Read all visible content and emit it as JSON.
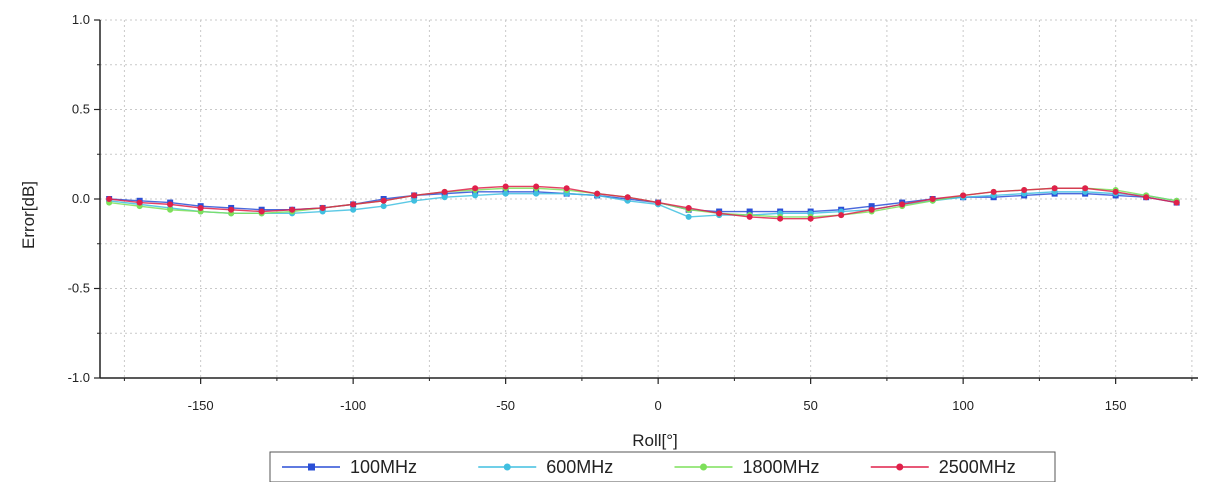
{
  "chart_data": {
    "type": "line",
    "title": "",
    "xlabel": "Roll[°]",
    "ylabel": "Error[dB]",
    "xlim": [
      -183,
      177
    ],
    "ylim": [
      -1.0,
      1.0
    ],
    "xticks": [
      -150,
      -100,
      -50,
      0,
      50,
      100,
      150
    ],
    "xtick_labels": [
      "-150",
      "-100",
      "-50",
      "0",
      "50",
      "100",
      "150"
    ],
    "yticks": [
      1.0,
      0.5,
      0.0,
      -0.5,
      -1.0
    ],
    "ytick_labels": [
      "1.0",
      "0.5",
      "0.0",
      "-0.5",
      "-1.0"
    ],
    "grid": true,
    "legend_position": "bottom",
    "x": [
      -180,
      -170,
      -160,
      -150,
      -140,
      -130,
      -120,
      -110,
      -100,
      -90,
      -80,
      -70,
      -60,
      -50,
      -40,
      -30,
      -20,
      -10,
      0,
      10,
      20,
      30,
      40,
      50,
      60,
      70,
      80,
      90,
      100,
      110,
      120,
      130,
      140,
      150,
      160,
      170
    ],
    "series": [
      {
        "name": "100MHz",
        "color": "#2a4fd6",
        "marker": "square",
        "values": [
          0.0,
          -0.01,
          -0.02,
          -0.04,
          -0.05,
          -0.06,
          -0.06,
          -0.05,
          -0.03,
          0.0,
          0.02,
          0.03,
          0.04,
          0.04,
          0.04,
          0.03,
          0.02,
          0.0,
          -0.02,
          -0.06,
          -0.07,
          -0.07,
          -0.07,
          -0.07,
          -0.06,
          -0.04,
          -0.02,
          0.0,
          0.01,
          0.01,
          0.02,
          0.03,
          0.03,
          0.02,
          0.01,
          -0.02
        ]
      },
      {
        "name": "600MHz",
        "color": "#40bfe0",
        "marker": "circle",
        "values": [
          -0.01,
          -0.03,
          -0.05,
          -0.07,
          -0.08,
          -0.08,
          -0.08,
          -0.07,
          -0.06,
          -0.04,
          -0.01,
          0.01,
          0.02,
          0.03,
          0.03,
          0.03,
          0.02,
          -0.01,
          -0.03,
          -0.1,
          -0.09,
          -0.09,
          -0.08,
          -0.08,
          -0.07,
          -0.06,
          -0.03,
          -0.01,
          0.01,
          0.02,
          0.03,
          0.04,
          0.04,
          0.03,
          0.02,
          -0.01
        ]
      },
      {
        "name": "1800MHz",
        "color": "#7de05a",
        "marker": "circle",
        "values": [
          -0.02,
          -0.04,
          -0.06,
          -0.07,
          -0.08,
          -0.08,
          -0.07,
          -0.05,
          -0.03,
          -0.01,
          0.02,
          0.04,
          0.05,
          0.06,
          0.06,
          0.05,
          0.03,
          0.01,
          -0.02,
          -0.06,
          -0.08,
          -0.09,
          -0.1,
          -0.1,
          -0.09,
          -0.07,
          -0.04,
          -0.01,
          0.02,
          0.04,
          0.05,
          0.06,
          0.06,
          0.05,
          0.02,
          -0.01
        ]
      },
      {
        "name": "2500MHz",
        "color": "#e0204a",
        "marker": "circle",
        "values": [
          0.0,
          -0.02,
          -0.03,
          -0.05,
          -0.06,
          -0.07,
          -0.06,
          -0.05,
          -0.03,
          -0.01,
          0.02,
          0.04,
          0.06,
          0.07,
          0.07,
          0.06,
          0.03,
          0.01,
          -0.02,
          -0.05,
          -0.08,
          -0.1,
          -0.11,
          -0.11,
          -0.09,
          -0.06,
          -0.03,
          0.0,
          0.02,
          0.04,
          0.05,
          0.06,
          0.06,
          0.04,
          0.01,
          -0.02
        ]
      }
    ]
  }
}
